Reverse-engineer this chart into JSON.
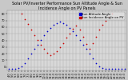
{
  "title": "Solar PV/Inverter Performance Sun Altitude Angle & Sun Incidence Angle on PV Panels",
  "bg_color": "#c8c8c8",
  "plot_bg": "#d8d8d8",
  "grid_color": "#aaaaaa",
  "legend_labels": [
    "Sun Altitude Angle",
    "Sun Incidence Angle on PV"
  ],
  "legend_colors": [
    "#0000cc",
    "#cc0000"
  ],
  "ylim": [
    -5,
    85
  ],
  "yticks": [
    0,
    10,
    20,
    30,
    40,
    50,
    60,
    70,
    80
  ],
  "blue_x": [
    0,
    1,
    2,
    3,
    4,
    5,
    6,
    7,
    8,
    9,
    10,
    11,
    12,
    13,
    14,
    15,
    16,
    17,
    18,
    19,
    20,
    21,
    22,
    23,
    24,
    25,
    26,
    27,
    28,
    29,
    30,
    31,
    32,
    33,
    34,
    35,
    36
  ],
  "blue_y": [
    -3,
    -3,
    -3,
    -2,
    1,
    6,
    13,
    20,
    27,
    34,
    41,
    48,
    54,
    59,
    63,
    66,
    68,
    66,
    63,
    59,
    54,
    48,
    41,
    34,
    27,
    20,
    13,
    6,
    1,
    -2,
    -3,
    -3,
    -3,
    -3,
    -3,
    -3,
    -3
  ],
  "red_x": [
    4,
    5,
    6,
    7,
    8,
    9,
    10,
    11,
    12,
    13,
    14,
    15,
    16,
    17,
    18,
    19,
    20,
    21,
    22,
    23,
    24,
    25,
    26,
    27,
    28,
    29,
    30,
    31,
    32
  ],
  "red_y": [
    80,
    72,
    65,
    56,
    48,
    41,
    34,
    28,
    22,
    18,
    20,
    24,
    30,
    36,
    44,
    50,
    57,
    62,
    56,
    46,
    35,
    28,
    36,
    46,
    56,
    64,
    70,
    76,
    80
  ],
  "xtick_labels": [
    "4:0",
    "5:0",
    "5:3",
    "6:0",
    "6:3",
    "7:0",
    "7:3",
    "8:0",
    "8:3",
    "9:0",
    "9:3",
    "10:0",
    "10:3",
    "11:0",
    "11:3",
    "12:0",
    "12:3",
    "13:0",
    "13:3",
    "14:0",
    "14:3",
    "15:0",
    "15:3",
    "16:0",
    "16:3",
    "17:0",
    "17:3",
    "18:0",
    "18:3",
    "19:0",
    "19:3",
    "20:0",
    "20:3",
    "21:0",
    "21:3",
    "22:0",
    "22:3"
  ],
  "title_fontsize": 3.5,
  "tick_fontsize": 2.5,
  "legend_fontsize": 2.8,
  "dot_size": 1.5
}
